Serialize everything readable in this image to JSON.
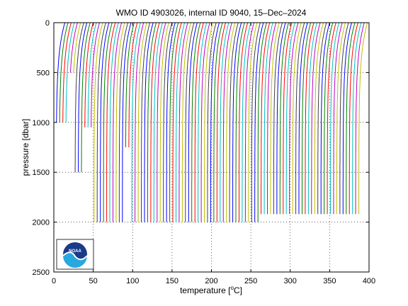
{
  "chart_data": {
    "type": "line",
    "title": "WMO ID 4903026, internal ID 9040, 15–Dec–2024",
    "xlabel": "temperature [°C]",
    "xlabel_main": "temperature [",
    "xlabel_unit_sup": "o",
    "xlabel_unit_tail": "C]",
    "ylabel": "pressure [dbar]",
    "xlim": [
      0,
      400
    ],
    "ylim": [
      0,
      2500
    ],
    "y_reversed": true,
    "grid": "dotted",
    "xticks": [
      0,
      50,
      100,
      150,
      200,
      250,
      300,
      350,
      400
    ],
    "yticks": [
      0,
      500,
      1000,
      1500,
      2000,
      2500
    ],
    "xtick_labels": [
      "0",
      "50",
      "100",
      "150",
      "200",
      "250",
      "300",
      "350",
      "400"
    ],
    "ytick_labels": [
      "0",
      "500",
      "1000",
      "1500",
      "2000",
      "2500"
    ],
    "series_colors": [
      "#0000ff",
      "#008000",
      "#ff0000",
      "#00bfbf",
      "#bf00bf",
      "#bfbf00",
      "#404040"
    ],
    "profile_offset_start": 0,
    "profile_offset_end": 384,
    "profile_offset_step": 4,
    "profile_bottoms": [
      {
        "offset_max": 12,
        "bottom": 1000
      },
      {
        "offset_max": 14,
        "bottom": 1500
      },
      {
        "offset_max": 20,
        "bottom": 500
      },
      {
        "offset_max": 34,
        "bottom": 1500
      },
      {
        "offset_max": 44,
        "bottom": 1050
      },
      {
        "offset_max": 52,
        "bottom": 2000
      },
      {
        "offset_max": 84,
        "bottom": 2000
      },
      {
        "offset_max": 92,
        "bottom": 1250
      },
      {
        "offset_max": 100,
        "bottom": 2000
      },
      {
        "offset_max": 256,
        "bottom": 2000
      },
      {
        "offset_max": 400,
        "bottom": 1920
      }
    ],
    "profile_shape": {
      "surface_temp_offset": 14,
      "deep_temp_offset": 3,
      "thermocline_scale": 300
    },
    "logo": "noaa-logo",
    "logo_text": "NOAA"
  }
}
